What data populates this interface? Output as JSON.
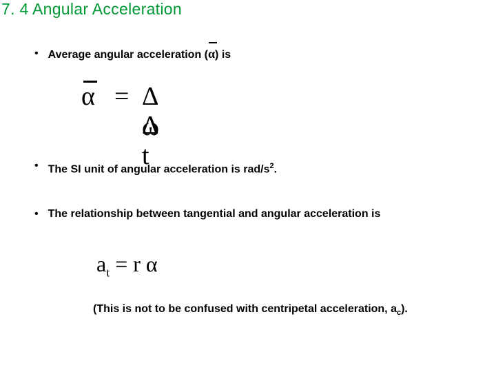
{
  "title": "7. 4 Angular Acceleration",
  "bullet1_pre": "Average angular acceleration (",
  "bullet1_post": ") is",
  "alpha_glyph": "α",
  "delta_glyph": "Δ",
  "omega_glyph": "ω",
  "eq_glyph": "=",
  "t_glyph": " t",
  "bullet2_pre": "The SI unit of angular acceleration is rad/s",
  "bullet2_exp": "2",
  "bullet2_post": ".",
  "bullet3": "The relationship between tangential and angular acceleration is",
  "formula2_at": "a",
  "formula2_sub": "t",
  "formula2_mid": " = r ",
  "note_pre": "(This is not to be confused with centripetal acceleration, a",
  "note_sub": "c",
  "note_post": ").",
  "colors": {
    "title": "#009933",
    "text": "#000000",
    "background": "#ffffff"
  }
}
